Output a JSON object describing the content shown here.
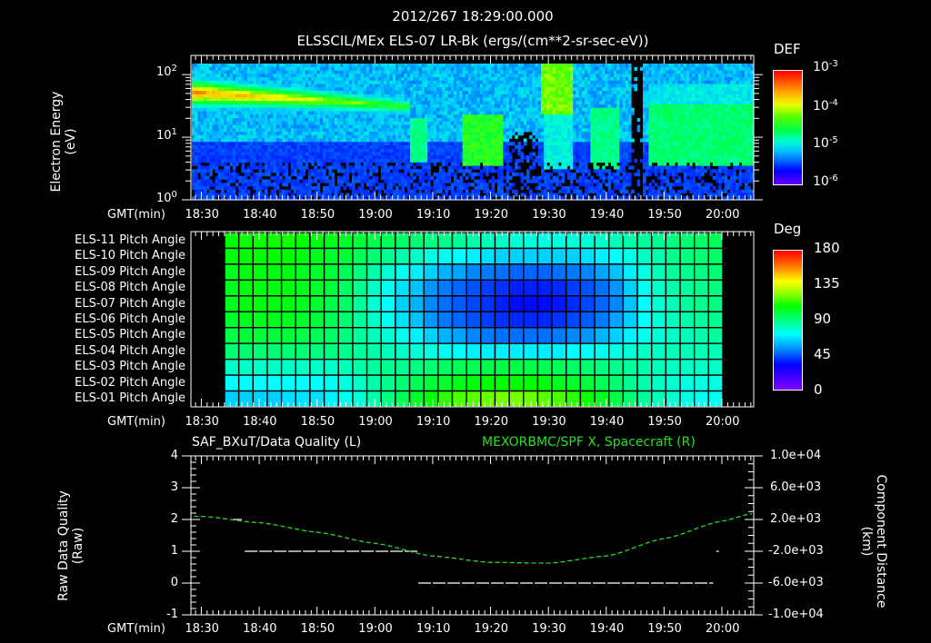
{
  "header": {
    "timestamp": "2012/267 18:29:00.000",
    "subtitle": "ELSSCIL/MEx ELS-07 LR-Bk  (ergs/(cm**2-sr-sec-eV))"
  },
  "time_axis": {
    "label": "GMT(min)",
    "ticks": [
      "18:30",
      "18:40",
      "18:50",
      "19:00",
      "19:10",
      "19:20",
      "19:30",
      "19:40",
      "19:50",
      "20:00"
    ]
  },
  "panel1": {
    "ylabel_line1": "Electron Energy",
    "ylabel_line2": "(eV)",
    "yticks": [
      {
        "base": "10",
        "exp": "2"
      },
      {
        "base": "10",
        "exp": "1"
      },
      {
        "base": "10",
        "exp": "0"
      }
    ],
    "colorbar": {
      "title": "DEF",
      "labels": [
        {
          "base": "10",
          "exp": "-3"
        },
        {
          "base": "10",
          "exp": "-4"
        },
        {
          "base": "10",
          "exp": "-5"
        },
        {
          "base": "10",
          "exp": "-6"
        }
      ]
    }
  },
  "panel2": {
    "row_labels": [
      "ELS-11 Pitch Angle",
      "ELS-10 Pitch Angle",
      "ELS-09 Pitch Angle",
      "ELS-08 Pitch Angle",
      "ELS-07 Pitch Angle",
      "ELS-06 Pitch Angle",
      "ELS-05 Pitch Angle",
      "ELS-04 Pitch Angle",
      "ELS-03 Pitch Angle",
      "ELS-02 Pitch Angle",
      "ELS-01 Pitch Angle"
    ],
    "colorbar": {
      "title": "Deg",
      "labels": [
        "180",
        "135",
        "90",
        "45",
        "0"
      ]
    }
  },
  "panel3": {
    "left_title": "SAF_BXuT/Data Quality (L)",
    "right_title": "MEXORBMC/SPF X, Spacecraft (R)",
    "ylabel_left_line1": "Raw Data Quality",
    "ylabel_left_line2": "(Raw)",
    "ylabel_right_line1": "Component Distance",
    "ylabel_right_line2": "(km)",
    "yticks_left": [
      "4",
      "3",
      "2",
      "1",
      "0",
      "-1"
    ],
    "yticks_right": [
      "1.0e+04",
      "6.0e+03",
      "2.0e+03",
      "-2.0e+03",
      "-6.0e+03",
      "-1.0e+04"
    ]
  },
  "colors": {
    "background": "#000000",
    "axis": "#ffffff",
    "spacecraft_line": "#22e022",
    "quality_line": "#ffffff"
  },
  "chart_data": [
    {
      "type": "heatmap",
      "title": "ELSSCIL/MEx ELS-07 LR-Bk (ergs/(cm**2-sr-sec-eV))",
      "xlabel": "GMT(min)",
      "ylabel": "Electron Energy (eV)",
      "x_range": [
        "18:28",
        "20:05"
      ],
      "y_scale": "log",
      "ylim": [
        1,
        150
      ],
      "colorbar": {
        "label": "DEF",
        "scale": "log",
        "range": [
          1e-06,
          0.001
        ]
      },
      "features": [
        {
          "t_start": "18:30",
          "t_end": "19:05",
          "energy_eV": [
            25,
            70
          ],
          "level": "1e-4 to 3e-4 (band decreasing over time)"
        },
        {
          "t_start": "19:14",
          "t_end": "19:22",
          "energy_eV": [
            4,
            20
          ],
          "level": "~5e-5"
        },
        {
          "t_start": "19:28",
          "t_end": "19:35",
          "energy_eV": [
            20,
            150
          ],
          "level": "~1e-4"
        },
        {
          "t_start": "19:44",
          "t_end": "19:46",
          "energy_eV": [
            1,
            150
          ],
          "level": "data gap"
        },
        {
          "t_start": "19:47",
          "t_end": "20:05",
          "energy_eV": [
            4,
            40
          ],
          "level": "~3e-5"
        }
      ]
    },
    {
      "type": "heatmap",
      "title": "ELS Pitch Angle",
      "xlabel": "GMT(min)",
      "x_range": [
        "18:35",
        "20:00"
      ],
      "rows": [
        "ELS-11",
        "ELS-10",
        "ELS-09",
        "ELS-08",
        "ELS-07",
        "ELS-06",
        "ELS-05",
        "ELS-04",
        "ELS-03",
        "ELS-02",
        "ELS-01"
      ],
      "colorbar": {
        "label": "Deg",
        "range": [
          0,
          180
        ],
        "ticks": [
          0,
          45,
          90,
          135,
          180
        ]
      },
      "n_columns": 35,
      "values_deg": [
        [
          108,
          110,
          110,
          110,
          110,
          108,
          106,
          104,
          102,
          100,
          98,
          96,
          94,
          92,
          90,
          88,
          86,
          84,
          82,
          80,
          78,
          77,
          76,
          76,
          77,
          78,
          80,
          82,
          84,
          86,
          88,
          90,
          92,
          94,
          96
        ],
        [
          106,
          108,
          108,
          108,
          108,
          106,
          104,
          102,
          100,
          96,
          92,
          88,
          84,
          80,
          76,
          74,
          72,
          70,
          68,
          66,
          66,
          66,
          66,
          66,
          66,
          68,
          70,
          72,
          76,
          80,
          84,
          88,
          90,
          92,
          94
        ],
        [
          104,
          106,
          106,
          106,
          106,
          104,
          102,
          100,
          96,
          90,
          84,
          78,
          74,
          70,
          66,
          62,
          60,
          56,
          54,
          52,
          50,
          50,
          50,
          52,
          54,
          56,
          60,
          64,
          70,
          76,
          82,
          86,
          88,
          90,
          92
        ],
        [
          104,
          106,
          106,
          106,
          106,
          104,
          102,
          100,
          94,
          88,
          80,
          74,
          68,
          64,
          58,
          54,
          50,
          46,
          42,
          40,
          36,
          36,
          36,
          38,
          42,
          46,
          52,
          58,
          66,
          74,
          80,
          84,
          86,
          88,
          90
        ],
        [
          104,
          106,
          106,
          106,
          106,
          104,
          102,
          98,
          94,
          86,
          78,
          72,
          66,
          62,
          56,
          52,
          48,
          44,
          40,
          36,
          32,
          32,
          32,
          34,
          38,
          44,
          50,
          56,
          64,
          72,
          78,
          82,
          86,
          88,
          90
        ],
        [
          102,
          104,
          104,
          104,
          104,
          102,
          100,
          96,
          92,
          86,
          80,
          74,
          68,
          64,
          58,
          54,
          50,
          46,
          42,
          40,
          38,
          38,
          38,
          40,
          44,
          48,
          54,
          60,
          66,
          72,
          78,
          82,
          84,
          86,
          88
        ],
        [
          98,
          100,
          100,
          100,
          100,
          98,
          96,
          94,
          90,
          86,
          82,
          78,
          74,
          70,
          66,
          62,
          60,
          56,
          54,
          52,
          52,
          52,
          52,
          54,
          56,
          58,
          62,
          66,
          70,
          74,
          78,
          80,
          82,
          84,
          86
        ],
        [
          92,
          92,
          92,
          92,
          92,
          92,
          90,
          90,
          88,
          86,
          84,
          82,
          80,
          78,
          76,
          74,
          72,
          70,
          70,
          70,
          70,
          70,
          70,
          70,
          72,
          72,
          74,
          76,
          78,
          80,
          80,
          82,
          82,
          82,
          82
        ],
        [
          80,
          80,
          80,
          80,
          80,
          80,
          80,
          80,
          82,
          84,
          86,
          88,
          88,
          90,
          92,
          94,
          96,
          96,
          98,
          98,
          98,
          98,
          96,
          96,
          94,
          92,
          90,
          88,
          86,
          84,
          82,
          80,
          80,
          80,
          80
        ],
        [
          72,
          72,
          72,
          72,
          72,
          72,
          72,
          74,
          76,
          80,
          84,
          88,
          92,
          96,
          100,
          102,
          104,
          106,
          108,
          108,
          108,
          108,
          106,
          104,
          102,
          100,
          96,
          92,
          88,
          84,
          80,
          78,
          76,
          76,
          76
        ],
        [
          66,
          66,
          66,
          66,
          68,
          68,
          68,
          70,
          74,
          78,
          84,
          90,
          96,
          102,
          108,
          114,
          118,
          120,
          122,
          124,
          124,
          122,
          120,
          118,
          114,
          110,
          104,
          98,
          92,
          86,
          82,
          78,
          76,
          74,
          74
        ]
      ]
    },
    {
      "type": "line",
      "title": "SAF_BXuT/Data Quality (L) ; MEXORBMC/SPF X, Spacecraft (R)",
      "xlabel": "GMT(min)",
      "ylabel": "Raw Data Quality (Raw)",
      "ylabel_right": "Component Distance (km)",
      "ylim": [
        -1,
        4
      ],
      "ylim_right": [
        -10000,
        10000
      ],
      "series": [
        {
          "name": "SAF_BXuT/Data Quality",
          "axis": "left",
          "color": "#ffffff",
          "segments": [
            {
              "t": [
                "18:35.5",
                "18:37"
              ],
              "y": 2
            },
            {
              "t": [
                "18:37.5",
                "19:07.5"
              ],
              "y": 1
            },
            {
              "t": [
                "19:07.5",
                "19:58.5"
              ],
              "y": 0
            },
            {
              "t": [
                "19:59",
                "19:59.5"
              ],
              "y": 1
            }
          ]
        },
        {
          "name": "MEXORBMC/SPF X, Spacecraft",
          "axis": "right",
          "color": "#22e022",
          "style": "dashed",
          "x": [
            "18:30",
            "18:40",
            "18:50",
            "19:00",
            "19:10",
            "19:20",
            "19:30",
            "19:40",
            "19:50",
            "20:00",
            "20:05"
          ],
          "values": [
            2400,
            1600,
            400,
            -1000,
            -2600,
            -3400,
            -3500,
            -2600,
            -400,
            1800,
            2700
          ]
        }
      ]
    }
  ]
}
